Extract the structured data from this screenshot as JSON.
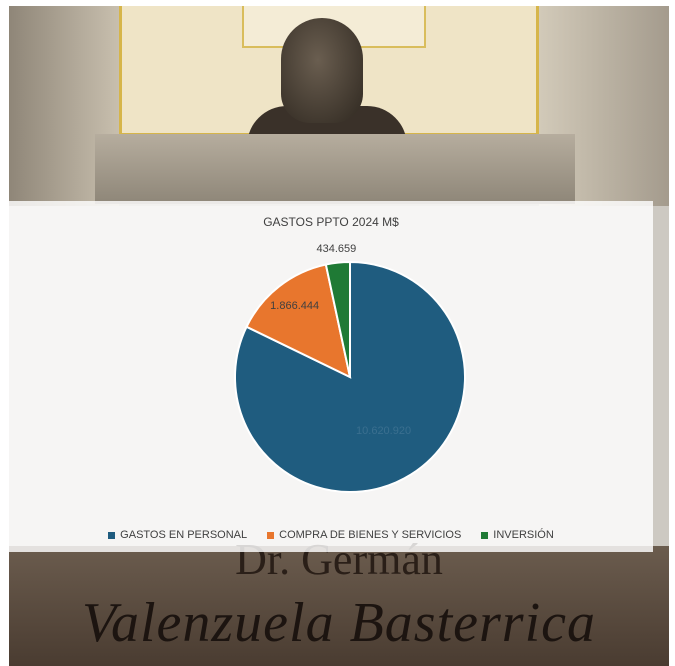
{
  "background_inscription": {
    "line1": "Dr. Germán",
    "line2": "Valenzuela Basterrica"
  },
  "chart_data": {
    "type": "pie",
    "title": "GASTOS PPTO 2024 M$",
    "categories": [
      "GASTOS EN PERSONAL",
      "COMPRA DE BIENES Y SERVICIOS",
      "INVERSIÓN"
    ],
    "values": [
      10620920,
      1866444,
      434659
    ],
    "data_labels": [
      "10.620.920",
      "1.866.444",
      "434.659"
    ],
    "colors": [
      "#1f5c7f",
      "#e8762d",
      "#1f7a35"
    ],
    "legend_position": "bottom"
  }
}
